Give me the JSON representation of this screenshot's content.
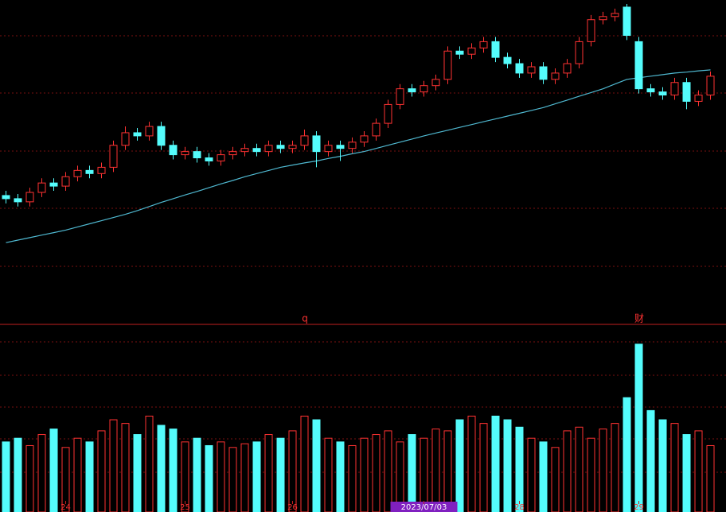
{
  "chart_data": {
    "type": "candlestick",
    "categories": [
      null,
      null,
      null,
      null,
      null,
      "24",
      null,
      null,
      null,
      null,
      null,
      null,
      null,
      null,
      null,
      "25",
      null,
      null,
      null,
      null,
      null,
      null,
      null,
      null,
      "26",
      null,
      null,
      null,
      null,
      null,
      null,
      null,
      null,
      null,
      null,
      "2023/07/03",
      null,
      null,
      null,
      null,
      null,
      null,
      null,
      "28",
      null,
      null,
      null,
      null,
      null,
      null,
      null,
      null,
      null,
      "29",
      null,
      null,
      null,
      null,
      null,
      null
    ],
    "open": [
      39,
      38,
      37,
      40,
      43,
      42,
      45,
      47,
      46,
      48,
      55,
      59,
      58,
      61,
      55,
      52,
      53,
      51,
      50,
      52,
      53,
      54,
      53,
      55,
      54,
      55,
      58,
      53,
      55,
      54,
      56,
      58,
      62,
      68,
      73,
      72,
      74,
      76,
      85,
      84,
      86,
      88,
      83,
      81,
      78,
      80,
      76,
      78,
      81,
      88,
      95,
      96,
      99,
      88,
      73,
      72,
      71,
      75,
      69,
      71
    ],
    "high": [
      40.5,
      39.5,
      41.5,
      44.5,
      44.5,
      46.5,
      48.5,
      48.5,
      49.5,
      56.5,
      61,
      60.5,
      62.5,
      62.5,
      56.5,
      54.5,
      54.5,
      52.5,
      53.5,
      54.5,
      55.5,
      55.5,
      56.5,
      56.5,
      56.5,
      60,
      59.5,
      56.5,
      56.5,
      57.5,
      59.5,
      63.5,
      69.5,
      74.5,
      74.5,
      75.5,
      77.5,
      86.5,
      86.5,
      87.5,
      89.5,
      89.5,
      84.5,
      82.5,
      81.5,
      81.5,
      79.5,
      82.5,
      89.5,
      96.5,
      97.5,
      98.5,
      100,
      89.5,
      74.5,
      73.5,
      76.5,
      76.5,
      72.5,
      78.5
    ],
    "low": [
      36.5,
      35.5,
      35.5,
      38.5,
      40.5,
      40.5,
      43.5,
      44.5,
      44.5,
      46.5,
      53.5,
      56.5,
      56.5,
      53.5,
      50.5,
      50.5,
      49.5,
      48.5,
      48.5,
      50.5,
      51.5,
      51.5,
      51.5,
      52.5,
      52.5,
      53.5,
      48,
      51.5,
      50,
      52.5,
      54.5,
      56.5,
      60.5,
      66.5,
      70.5,
      70.5,
      72.5,
      74.5,
      82.5,
      82.5,
      84.5,
      81.5,
      79.5,
      76.5,
      76.5,
      74.5,
      74.5,
      76.5,
      79.5,
      86.5,
      93.5,
      94.5,
      88.5,
      71.5,
      70.5,
      69.5,
      69.5,
      66.5,
      67.5,
      69.5
    ],
    "close": [
      38,
      37,
      40,
      43,
      42,
      45,
      47,
      46,
      48,
      55,
      59,
      58,
      61,
      55,
      52,
      53,
      51,
      50,
      52,
      53,
      54,
      53,
      55,
      54,
      55,
      58,
      53,
      55,
      54,
      56,
      58,
      62,
      68,
      73,
      72,
      74,
      76,
      85,
      84,
      86,
      88,
      83,
      81,
      78,
      80,
      76,
      78,
      81,
      88,
      95,
      96,
      97,
      90,
      73,
      72,
      71,
      75,
      69,
      71,
      77
    ],
    "ylim": [
      0,
      100
    ],
    "up_color": "#ff3232",
    "down_color": "#54fcfc",
    "ma": {
      "color": "#4fb8d0",
      "values": [
        24,
        24.8,
        25.6,
        26.4,
        27.2,
        28,
        29,
        30,
        31,
        32,
        33,
        34.2,
        35.5,
        36.8,
        38,
        39.2,
        40.3,
        41.5,
        42.7,
        43.8,
        45,
        46,
        47,
        48,
        48.7,
        49.4,
        50,
        50.8,
        51.5,
        52.3,
        53,
        54,
        55,
        56,
        57,
        58,
        58.9,
        59.8,
        60.7,
        61.6,
        62.5,
        63.4,
        64.3,
        65.2,
        66.1,
        67,
        68.2,
        69.4,
        70.6,
        71.8,
        73,
        74.5,
        76,
        76.5,
        77,
        77.5,
        78,
        78.3,
        78.7,
        79
      ]
    },
    "volume": {
      "ylim": [
        0,
        100
      ],
      "values": [
        38,
        40,
        36,
        42,
        45,
        35,
        40,
        38,
        44,
        50,
        48,
        42,
        52,
        47,
        45,
        38,
        40,
        36,
        38,
        35,
        37,
        38,
        42,
        40,
        44,
        52,
        50,
        40,
        38,
        36,
        40,
        42,
        44,
        38,
        42,
        40,
        45,
        44,
        50,
        52,
        48,
        52,
        50,
        46,
        40,
        38,
        35,
        44,
        46,
        40,
        45,
        48,
        62,
        91,
        55,
        50,
        48,
        42,
        44,
        36
      ]
    },
    "annotations": [
      "q",
      "财"
    ]
  }
}
